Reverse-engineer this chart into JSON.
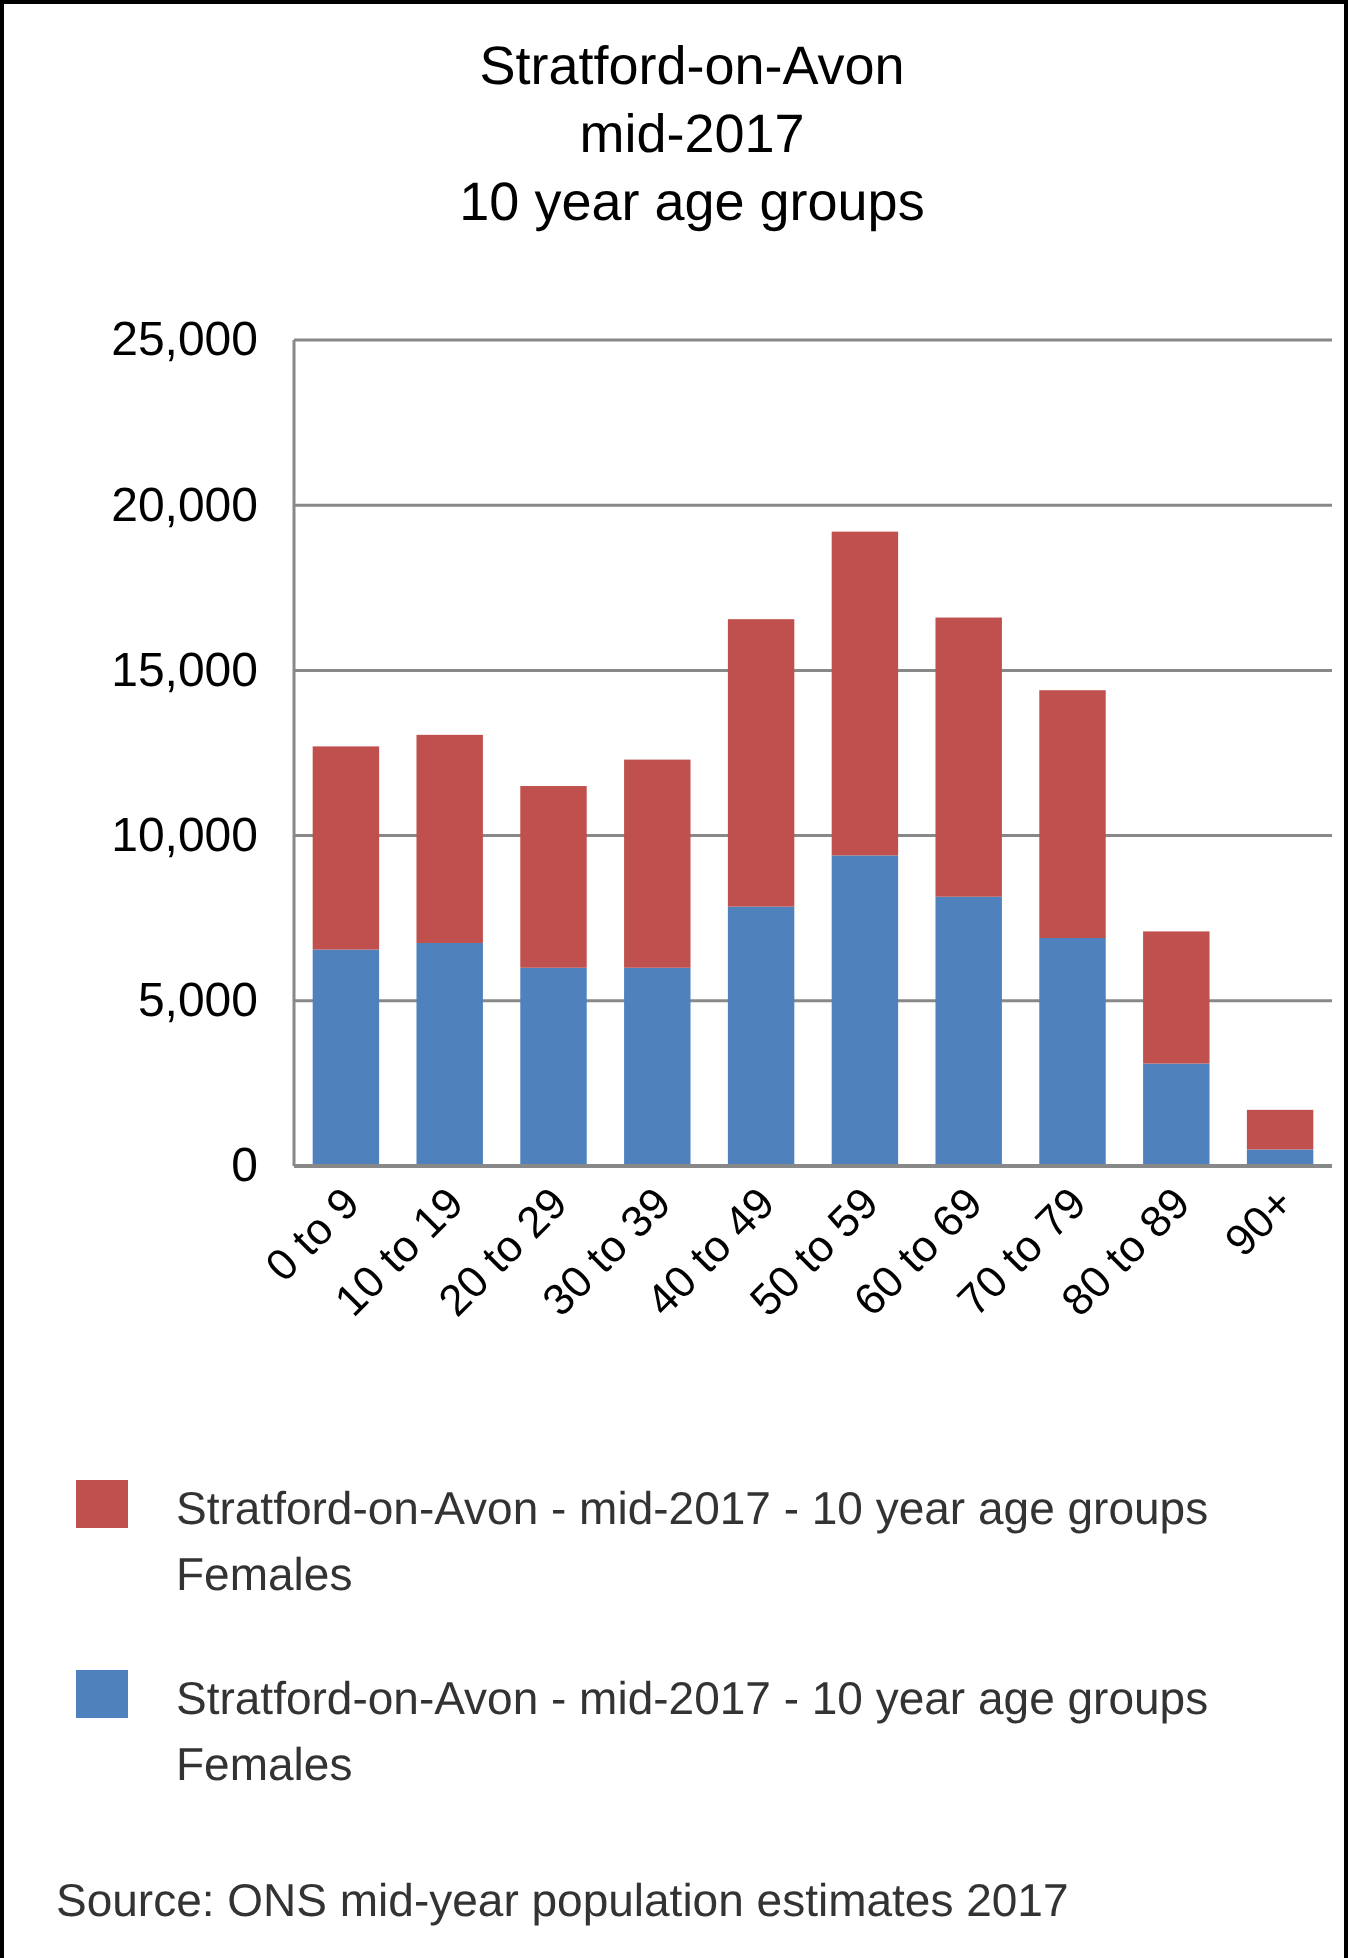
{
  "chart_data": {
    "type": "bar",
    "title": "Stratford-on-Avon\nmid-2017\n10 year age groups",
    "categories": [
      "0 to 9",
      "10 to 19",
      "20 to 29",
      "30 to 39",
      "40 to 49",
      "50 to 59",
      "60 to 69",
      "70 to 79",
      "80 to 89",
      "90+"
    ],
    "series": [
      {
        "name": "Stratford-on-Avon - mid-2017 - 10 year age groups Females",
        "color": "#4f81bd",
        "values": [
          6550,
          6750,
          6000,
          6000,
          7850,
          9400,
          8150,
          6900,
          3100,
          500
        ]
      },
      {
        "name": "Stratford-on-Avon - mid-2017 - 10 year age groups Females",
        "color": "#c0504d",
        "values": [
          6150,
          6300,
          5500,
          6300,
          8700,
          9800,
          8450,
          7500,
          4000,
          1200
        ]
      }
    ],
    "stacked": true,
    "ylim": [
      0,
      25000
    ],
    "yticks": [
      {
        "value": 0,
        "label": "0"
      },
      {
        "value": 5000,
        "label": "5,000"
      },
      {
        "value": 10000,
        "label": "10,000"
      },
      {
        "value": 15000,
        "label": "15,000"
      },
      {
        "value": 20000,
        "label": "20,000"
      },
      {
        "value": 25000,
        "label": "25,000"
      }
    ],
    "grid": "y",
    "legend": "bottom",
    "annotations": [
      "Source: ONS mid-year population estimates 2017"
    ]
  }
}
